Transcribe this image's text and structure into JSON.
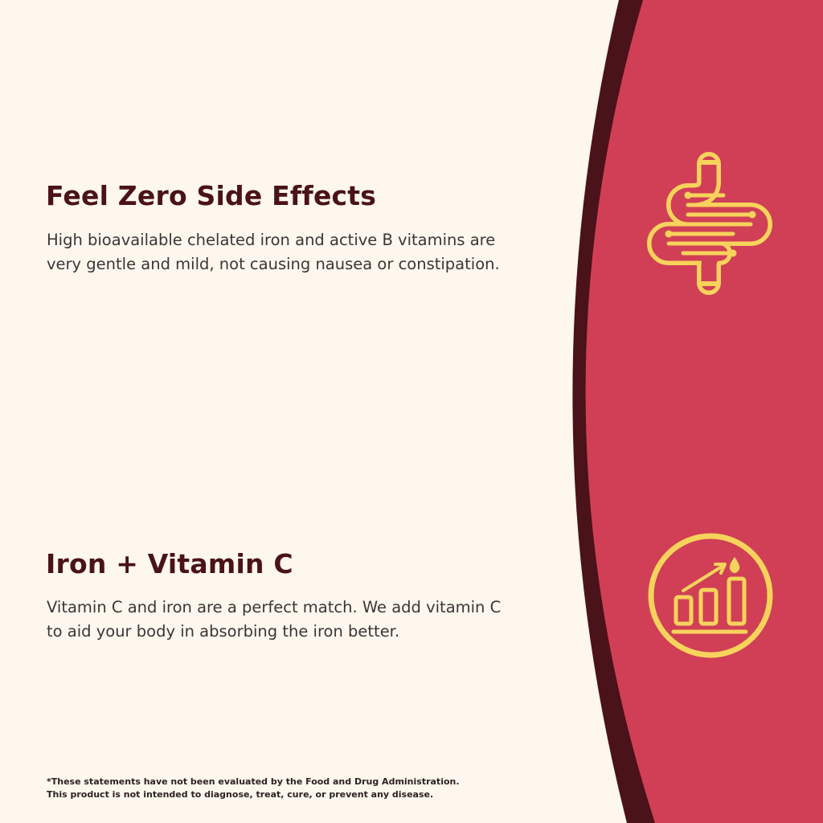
{
  "colors": {
    "background": "#fdf7ee",
    "accent_red": "#d03f55",
    "band_dark": "#4a1219",
    "icon_yellow": "#f7d35c",
    "heading": "#4a1219"
  },
  "sections": [
    {
      "title": "Feel Zero Side Effects",
      "lines": [
        "High bioavailable chelated iron and active B vitamins are",
        "very gentle and mild, not causing nausea or constipation."
      ],
      "icon": "intestine-icon"
    },
    {
      "title": "Iron + Vitamin C",
      "lines": [
        "Vitamin C and iron are a perfect match. We add vitamin C",
        "to aid your body in absorbing the iron better."
      ],
      "icon": "absorption-chart-icon"
    }
  ],
  "disclaimer": [
    "*These statements have not been evaluated by the Food and Drug Administration.",
    "This product is not intended to diagnose, treat, cure, or prevent any disease."
  ]
}
